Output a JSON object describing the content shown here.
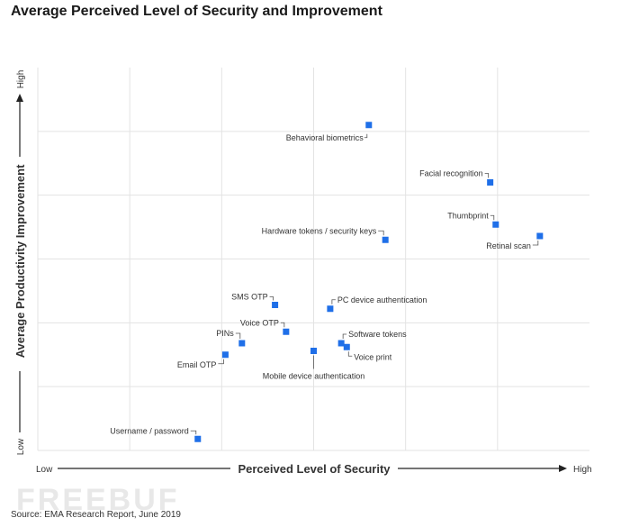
{
  "chart_data": {
    "type": "scatter",
    "title": "Average Perceived Level of Security and Improvement",
    "xlabel": "Perceived Level of Security",
    "ylabel": "Average Productivity Improvement",
    "x_low_label": "Low",
    "x_high_label": "High",
    "y_low_label": "Low",
    "y_high_label": "High",
    "xlim": [
      0,
      100
    ],
    "ylim": [
      0,
      100
    ],
    "grid": true,
    "marker_color": "#1f6fe8",
    "points": [
      {
        "label": "Behavioral biometrics",
        "x": 60,
        "y": 85
      },
      {
        "label": "Facial recognition",
        "x": 82,
        "y": 70
      },
      {
        "label": "Thumbprint",
        "x": 83,
        "y": 59
      },
      {
        "label": "Retinal scan",
        "x": 91,
        "y": 56
      },
      {
        "label": "Hardware tokens / security keys",
        "x": 63,
        "y": 55
      },
      {
        "label": "SMS OTP",
        "x": 43,
        "y": 38
      },
      {
        "label": "PC device authentication",
        "x": 53,
        "y": 37
      },
      {
        "label": "Voice OTP",
        "x": 45,
        "y": 31
      },
      {
        "label": "PINs",
        "x": 37,
        "y": 28
      },
      {
        "label": "Software tokens",
        "x": 55,
        "y": 28
      },
      {
        "label": "Voice print",
        "x": 56,
        "y": 27
      },
      {
        "label": "Mobile device authentication",
        "x": 50,
        "y": 26
      },
      {
        "label": "Email OTP",
        "x": 34,
        "y": 25
      },
      {
        "label": "Username / password",
        "x": 29,
        "y": 3
      }
    ]
  },
  "source": "Source: EMA Research Report, June 2019",
  "watermark": "FREEBUF"
}
